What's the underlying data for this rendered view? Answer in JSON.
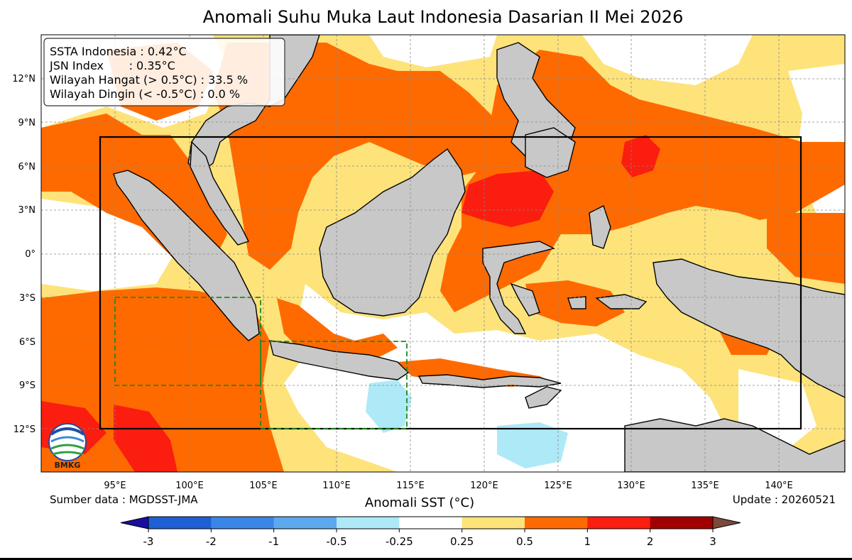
{
  "title": "Anomali Suhu Muka Laut Indonesia Dasarian II Mei 2026",
  "stats": {
    "ssta": "SSTA Indonesia : 0.42°C",
    "jsn": "JSN Index       : 0.35°C",
    "warm": "Wilayah Hangat (> 0.5°C) : 33.5 %",
    "cold": "Wilayah Dingin (< -0.5°C) : 0.0 %"
  },
  "axes": {
    "lon_labels": [
      "95°E",
      "100°E",
      "105°E",
      "110°E",
      "115°E",
      "120°E",
      "125°E",
      "130°E",
      "135°E",
      "140°E"
    ],
    "lat_labels": [
      "12°N",
      "9°N",
      "6°N",
      "3°N",
      "0°",
      "3°S",
      "6°S",
      "9°S",
      "12°S"
    ],
    "lon_range": [
      90,
      145
    ],
    "lat_range": [
      -15,
      15
    ]
  },
  "source": "Sumber data : MGDSST-JMA",
  "update": "Update : 20260521",
  "logo_text": "BMKG",
  "colorbar": {
    "label": "Anomali SST (°C)",
    "ticks": [
      "-3",
      "-2",
      "-1",
      "-0.5",
      "-0.25",
      "0.25",
      "0.5",
      "1",
      "2",
      "3"
    ],
    "colors": [
      "#1f5fd6",
      "#3a86e8",
      "#5ea8ee",
      "#aee9f7",
      "#ffffff",
      "#fde37a",
      "#ff6a00",
      "#fb1d10",
      "#a00000"
    ],
    "under_color": "#1a0ea0",
    "over_color": "#7a4a3a"
  },
  "map_colors": {
    "land": "#c8c8c8",
    "warm_mild": "#fde37a",
    "warm": "#ff6a00",
    "hot": "#fb1d10",
    "cool": "#aee9f7"
  },
  "regions": {
    "main_box_lon": [
      94,
      142
    ],
    "main_box_lat": [
      -12,
      8
    ],
    "green_box_1_lon": [
      95,
      105
    ],
    "green_box_1_lat": [
      -9,
      -3
    ],
    "green_box_2_lon": [
      105,
      115
    ],
    "green_box_2_lat": [
      -12,
      -6
    ]
  }
}
